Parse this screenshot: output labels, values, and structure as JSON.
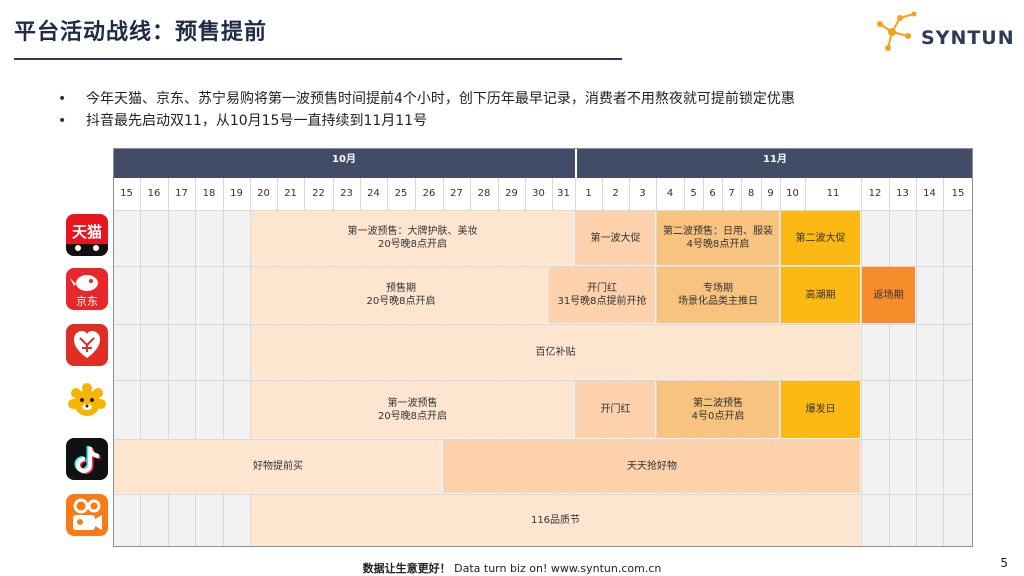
{
  "header": {
    "title": "平台活动战线：预售提前",
    "logo_text": "SYNTUN"
  },
  "bullets": [
    "今年天猫、京东、苏宁易购将第一波预售时间提前4个小时，创下历年最早记录，消费者不用熬夜就可提前锁定优惠",
    "抖音最先启动双11，从10月15号一直持续到11月11号"
  ],
  "timeline": {
    "months": [
      "10月",
      "11月"
    ],
    "days": [
      "15",
      "16",
      "17",
      "18",
      "19",
      "20",
      "21",
      "22",
      "23",
      "24",
      "25",
      "26",
      "27",
      "28",
      "29",
      "30",
      "31",
      "1",
      "2",
      "3",
      "4",
      "5",
      "6",
      "7",
      "8",
      "9",
      "10",
      "11",
      "12",
      "13",
      "14",
      "15"
    ],
    "platforms": [
      {
        "icon": "tmall-icon",
        "icon_text": "天猫",
        "color": "#e8141f"
      },
      {
        "icon": "jd-icon",
        "icon_text": "京东",
        "color": "#e8272a"
      },
      {
        "icon": "pinduoduo-icon",
        "color": "#e02e24"
      },
      {
        "icon": "suning-icon",
        "color": "#f9b400"
      },
      {
        "icon": "douyin-icon",
        "color": "#111111"
      },
      {
        "icon": "kuaishou-icon",
        "color": "#f97b18"
      }
    ],
    "bars": [
      {
        "row": 0,
        "text": "第一波预售：大牌护肤、美妆\n20号晚8点开启"
      },
      {
        "row": 0,
        "text": "第一波大促"
      },
      {
        "row": 0,
        "text": "第二波预售：日用、服装\n4号晚8点开启"
      },
      {
        "row": 0,
        "text": "第二波大促"
      },
      {
        "row": 1,
        "text": "预售期\n20号晚8点开启"
      },
      {
        "row": 1,
        "text": "开门红\n31号晚8点提前开抢"
      },
      {
        "row": 1,
        "text": "专场期\n场景化品类主推日"
      },
      {
        "row": 1,
        "text": "高潮期"
      },
      {
        "row": 1,
        "text": "返场期"
      },
      {
        "row": 2,
        "text": "百亿补贴"
      },
      {
        "row": 3,
        "text": "第一波预售\n20号晚8点开启"
      },
      {
        "row": 3,
        "text": "开门红"
      },
      {
        "row": 3,
        "text": "第二波预售\n4号0点开启"
      },
      {
        "row": 3,
        "text": "爆发日"
      },
      {
        "row": 4,
        "text": "好物提前买"
      },
      {
        "row": 4,
        "text": "天天抢好物"
      },
      {
        "row": 5,
        "text": "116品质节"
      }
    ]
  },
  "footer": {
    "slogan": "数据让生意更好！",
    "slogan_en": "Data turn biz on!",
    "url": "www.syntun.com.cn",
    "page": "5"
  }
}
